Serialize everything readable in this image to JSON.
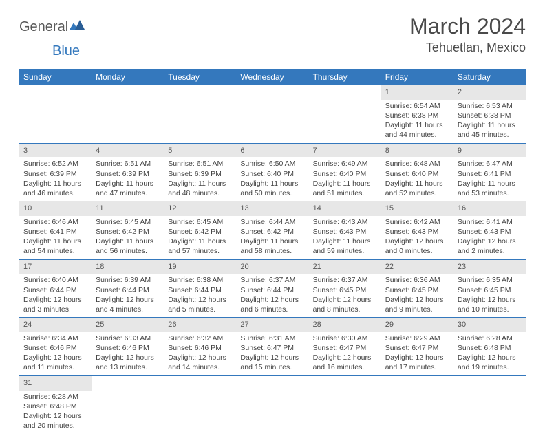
{
  "logo": {
    "part1": "General",
    "part2": "Blue"
  },
  "title": "March 2024",
  "location": "Tehuetlan, Mexico",
  "colors": {
    "header_bg": "#3478bd",
    "header_text": "#ffffff",
    "daynum_bg": "#e7e7e7",
    "border": "#3478bd"
  },
  "weekdays": [
    "Sunday",
    "Monday",
    "Tuesday",
    "Wednesday",
    "Thursday",
    "Friday",
    "Saturday"
  ],
  "weeks": [
    [
      null,
      null,
      null,
      null,
      null,
      {
        "n": "1",
        "sunrise": "Sunrise: 6:54 AM",
        "sunset": "Sunset: 6:38 PM",
        "daylight": "Daylight: 11 hours and 44 minutes."
      },
      {
        "n": "2",
        "sunrise": "Sunrise: 6:53 AM",
        "sunset": "Sunset: 6:38 PM",
        "daylight": "Daylight: 11 hours and 45 minutes."
      }
    ],
    [
      {
        "n": "3",
        "sunrise": "Sunrise: 6:52 AM",
        "sunset": "Sunset: 6:39 PM",
        "daylight": "Daylight: 11 hours and 46 minutes."
      },
      {
        "n": "4",
        "sunrise": "Sunrise: 6:51 AM",
        "sunset": "Sunset: 6:39 PM",
        "daylight": "Daylight: 11 hours and 47 minutes."
      },
      {
        "n": "5",
        "sunrise": "Sunrise: 6:51 AM",
        "sunset": "Sunset: 6:39 PM",
        "daylight": "Daylight: 11 hours and 48 minutes."
      },
      {
        "n": "6",
        "sunrise": "Sunrise: 6:50 AM",
        "sunset": "Sunset: 6:40 PM",
        "daylight": "Daylight: 11 hours and 50 minutes."
      },
      {
        "n": "7",
        "sunrise": "Sunrise: 6:49 AM",
        "sunset": "Sunset: 6:40 PM",
        "daylight": "Daylight: 11 hours and 51 minutes."
      },
      {
        "n": "8",
        "sunrise": "Sunrise: 6:48 AM",
        "sunset": "Sunset: 6:40 PM",
        "daylight": "Daylight: 11 hours and 52 minutes."
      },
      {
        "n": "9",
        "sunrise": "Sunrise: 6:47 AM",
        "sunset": "Sunset: 6:41 PM",
        "daylight": "Daylight: 11 hours and 53 minutes."
      }
    ],
    [
      {
        "n": "10",
        "sunrise": "Sunrise: 6:46 AM",
        "sunset": "Sunset: 6:41 PM",
        "daylight": "Daylight: 11 hours and 54 minutes."
      },
      {
        "n": "11",
        "sunrise": "Sunrise: 6:45 AM",
        "sunset": "Sunset: 6:42 PM",
        "daylight": "Daylight: 11 hours and 56 minutes."
      },
      {
        "n": "12",
        "sunrise": "Sunrise: 6:45 AM",
        "sunset": "Sunset: 6:42 PM",
        "daylight": "Daylight: 11 hours and 57 minutes."
      },
      {
        "n": "13",
        "sunrise": "Sunrise: 6:44 AM",
        "sunset": "Sunset: 6:42 PM",
        "daylight": "Daylight: 11 hours and 58 minutes."
      },
      {
        "n": "14",
        "sunrise": "Sunrise: 6:43 AM",
        "sunset": "Sunset: 6:43 PM",
        "daylight": "Daylight: 11 hours and 59 minutes."
      },
      {
        "n": "15",
        "sunrise": "Sunrise: 6:42 AM",
        "sunset": "Sunset: 6:43 PM",
        "daylight": "Daylight: 12 hours and 0 minutes."
      },
      {
        "n": "16",
        "sunrise": "Sunrise: 6:41 AM",
        "sunset": "Sunset: 6:43 PM",
        "daylight": "Daylight: 12 hours and 2 minutes."
      }
    ],
    [
      {
        "n": "17",
        "sunrise": "Sunrise: 6:40 AM",
        "sunset": "Sunset: 6:44 PM",
        "daylight": "Daylight: 12 hours and 3 minutes."
      },
      {
        "n": "18",
        "sunrise": "Sunrise: 6:39 AM",
        "sunset": "Sunset: 6:44 PM",
        "daylight": "Daylight: 12 hours and 4 minutes."
      },
      {
        "n": "19",
        "sunrise": "Sunrise: 6:38 AM",
        "sunset": "Sunset: 6:44 PM",
        "daylight": "Daylight: 12 hours and 5 minutes."
      },
      {
        "n": "20",
        "sunrise": "Sunrise: 6:37 AM",
        "sunset": "Sunset: 6:44 PM",
        "daylight": "Daylight: 12 hours and 6 minutes."
      },
      {
        "n": "21",
        "sunrise": "Sunrise: 6:37 AM",
        "sunset": "Sunset: 6:45 PM",
        "daylight": "Daylight: 12 hours and 8 minutes."
      },
      {
        "n": "22",
        "sunrise": "Sunrise: 6:36 AM",
        "sunset": "Sunset: 6:45 PM",
        "daylight": "Daylight: 12 hours and 9 minutes."
      },
      {
        "n": "23",
        "sunrise": "Sunrise: 6:35 AM",
        "sunset": "Sunset: 6:45 PM",
        "daylight": "Daylight: 12 hours and 10 minutes."
      }
    ],
    [
      {
        "n": "24",
        "sunrise": "Sunrise: 6:34 AM",
        "sunset": "Sunset: 6:46 PM",
        "daylight": "Daylight: 12 hours and 11 minutes."
      },
      {
        "n": "25",
        "sunrise": "Sunrise: 6:33 AM",
        "sunset": "Sunset: 6:46 PM",
        "daylight": "Daylight: 12 hours and 13 minutes."
      },
      {
        "n": "26",
        "sunrise": "Sunrise: 6:32 AM",
        "sunset": "Sunset: 6:46 PM",
        "daylight": "Daylight: 12 hours and 14 minutes."
      },
      {
        "n": "27",
        "sunrise": "Sunrise: 6:31 AM",
        "sunset": "Sunset: 6:47 PM",
        "daylight": "Daylight: 12 hours and 15 minutes."
      },
      {
        "n": "28",
        "sunrise": "Sunrise: 6:30 AM",
        "sunset": "Sunset: 6:47 PM",
        "daylight": "Daylight: 12 hours and 16 minutes."
      },
      {
        "n": "29",
        "sunrise": "Sunrise: 6:29 AM",
        "sunset": "Sunset: 6:47 PM",
        "daylight": "Daylight: 12 hours and 17 minutes."
      },
      {
        "n": "30",
        "sunrise": "Sunrise: 6:28 AM",
        "sunset": "Sunset: 6:48 PM",
        "daylight": "Daylight: 12 hours and 19 minutes."
      }
    ],
    [
      {
        "n": "31",
        "sunrise": "Sunrise: 6:28 AM",
        "sunset": "Sunset: 6:48 PM",
        "daylight": "Daylight: 12 hours and 20 minutes."
      },
      null,
      null,
      null,
      null,
      null,
      null
    ]
  ]
}
